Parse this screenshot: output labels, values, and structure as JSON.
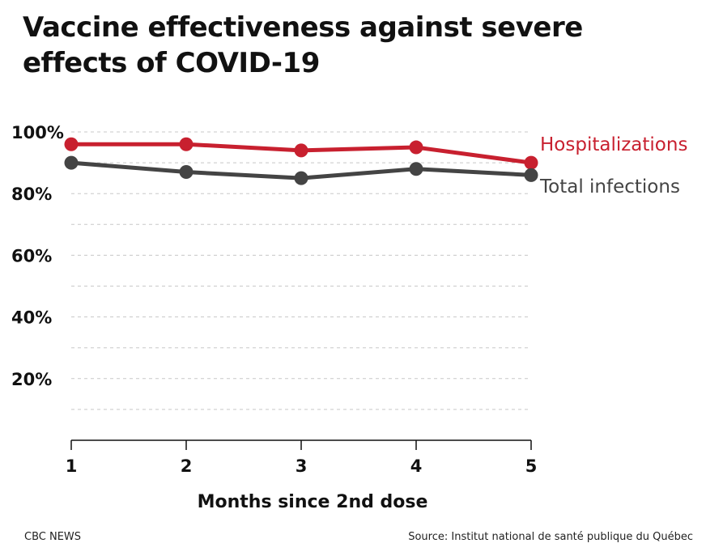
{
  "chart_data": {
    "type": "line",
    "title": "Vaccine effectiveness against severe effects of COVID-19",
    "xlabel": "Months since 2nd dose",
    "ylabel": "",
    "x": [
      1,
      2,
      3,
      4,
      5
    ],
    "x_tick_labels": [
      "1",
      "2",
      "3",
      "4",
      "5"
    ],
    "y_ticks": [
      20,
      40,
      60,
      80,
      100
    ],
    "y_tick_labels": [
      "20%",
      "40%",
      "60%",
      "80%",
      "100%"
    ],
    "ylim": [
      0,
      100
    ],
    "grid": true,
    "legend": "direct labels at right end of lines",
    "series": [
      {
        "name": "Hospitalizations",
        "color": "#c8202f",
        "values": [
          96,
          96,
          94,
          95,
          90
        ]
      },
      {
        "name": "Total infections",
        "color": "#444444",
        "values": [
          90,
          87,
          85,
          88,
          86
        ]
      }
    ]
  },
  "footer": {
    "brand": "CBC NEWS",
    "source": "Source: Institut national de santé publique du Québec"
  }
}
